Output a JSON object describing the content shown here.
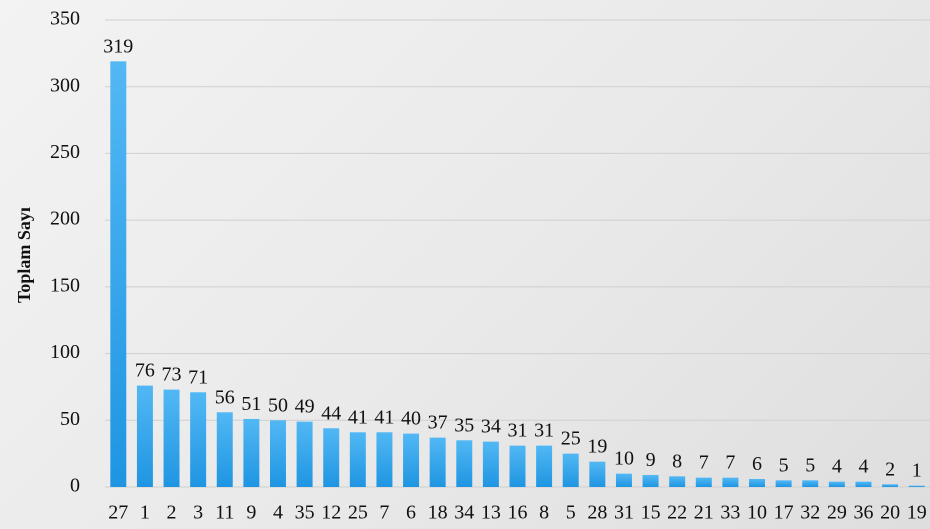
{
  "chart_data": {
    "type": "bar",
    "title": "",
    "xlabel": "",
    "ylabel": "Toplam Sayı",
    "ylim": [
      0,
      350
    ],
    "yticks": [
      0,
      50,
      100,
      150,
      200,
      250,
      300,
      350
    ],
    "grid": true,
    "bar_color": "#3aa9ee",
    "categories": [
      "27",
      "1",
      "2",
      "3",
      "11",
      "9",
      "4",
      "35",
      "12",
      "25",
      "7",
      "6",
      "18",
      "34",
      "13",
      "16",
      "8",
      "5",
      "28",
      "31",
      "15",
      "22",
      "21",
      "33",
      "10",
      "17",
      "32",
      "29",
      "36",
      "20",
      "19"
    ],
    "values": [
      319,
      76,
      73,
      71,
      56,
      51,
      50,
      49,
      44,
      41,
      41,
      40,
      37,
      35,
      34,
      31,
      31,
      25,
      19,
      10,
      9,
      8,
      7,
      7,
      6,
      5,
      5,
      4,
      4,
      2,
      1
    ]
  }
}
